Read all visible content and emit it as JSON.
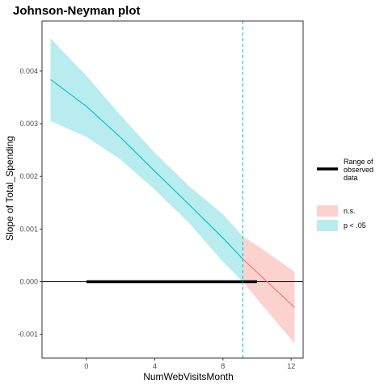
{
  "chart_data": {
    "type": "line",
    "title": "Johnson-Neyman plot",
    "xlabel": "NumWebVisitsMonth",
    "ylabel": "Slope of Total_Spending",
    "xlim": [
      -2.6,
      12.7
    ],
    "ylim": [
      -0.00145,
      0.00495
    ],
    "x_ticks": [
      0,
      4,
      8,
      12
    ],
    "x_tick_labels": [
      "0",
      "4",
      "8",
      "12"
    ],
    "y_ticks": [
      -0.001,
      0,
      0.001,
      0.002,
      0.003,
      0.004
    ],
    "y_tick_labels": [
      "-0.001",
      "0.000",
      "0.001",
      "0.002",
      "0.003",
      "0.004"
    ],
    "grid": false,
    "legend_position": "right",
    "jn_threshold": 9.17,
    "observed_range": [
      0,
      10
    ],
    "series": [
      {
        "name": "p < .05",
        "color": "#00BFC4",
        "fill": "#b8ecee",
        "x": [
          -2.1,
          0,
          2,
          4,
          6,
          8,
          9.17
        ],
        "y": [
          0.00384,
          0.00333,
          0.00274,
          0.0021,
          0.00147,
          0.00083,
          0.00043
        ],
        "lower": [
          0.00305,
          0.00275,
          0.00232,
          0.00175,
          0.00112,
          0.00038,
          0.0
        ],
        "upper": [
          0.00462,
          0.00391,
          0.00316,
          0.00245,
          0.00182,
          0.00128,
          0.00086
        ]
      },
      {
        "name": "n.s.",
        "color": "#F8766D",
        "fill": "#fcd2cf",
        "x": [
          9.17,
          10,
          12.2
        ],
        "y": [
          0.00043,
          0.00018,
          -0.00049
        ],
        "lower": [
          0.0,
          -0.00033,
          -0.00117
        ],
        "upper": [
          0.00086,
          0.00069,
          0.00019
        ]
      }
    ],
    "legend": {
      "range_label": "Range of observed data",
      "range_label_lines": [
        "Range of",
        "observed",
        "data"
      ],
      "items": [
        {
          "label": "n.s.",
          "color": "#F8766D"
        },
        {
          "label": "p < .05",
          "color": "#00BFC4"
        }
      ]
    }
  }
}
